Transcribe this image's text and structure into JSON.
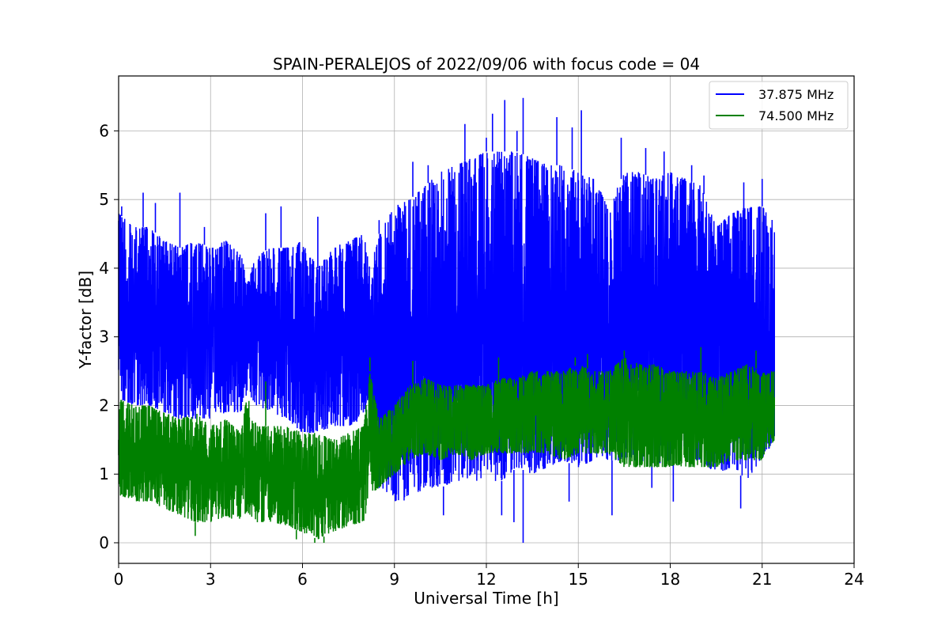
{
  "chart_data": {
    "type": "line",
    "title": "SPAIN-PERALEJOS of 2022/09/06 with focus code = 04",
    "xlabel": "Universal Time [h]",
    "ylabel": "Y-factor [dB]",
    "xlim": [
      0,
      24
    ],
    "ylim": [
      -0.3,
      6.8
    ],
    "xticks": [
      "0",
      "3",
      "6",
      "9",
      "12",
      "15",
      "18",
      "21",
      "24"
    ],
    "yticks": [
      "0",
      "1",
      "2",
      "3",
      "4",
      "5",
      "6"
    ],
    "grid": true,
    "legend_position": "top-right",
    "x_hours": [
      0,
      0.5,
      1,
      1.5,
      2,
      2.5,
      3,
      3.5,
      4,
      4.2,
      4.5,
      5,
      5.5,
      6,
      6.5,
      7,
      7.5,
      8,
      8.2,
      8.5,
      9,
      9.5,
      10,
      10.5,
      11,
      11.5,
      12,
      12.5,
      13,
      13.5,
      14,
      14.5,
      15,
      15.5,
      16,
      16.5,
      17,
      17.5,
      18,
      18.5,
      19,
      19.5,
      20,
      20.5,
      21,
      21.4
    ],
    "series": [
      {
        "name": "37.875 MHz",
        "color": "#0000ff",
        "upper": [
          4.8,
          4.6,
          4.6,
          4.4,
          4.3,
          4.4,
          4.3,
          4.4,
          4.2,
          3.8,
          4.2,
          4.3,
          4.3,
          4.4,
          4.0,
          4.3,
          4.4,
          4.5,
          4.0,
          4.5,
          4.9,
          5.0,
          5.2,
          5.4,
          5.5,
          5.6,
          5.7,
          5.7,
          5.7,
          5.6,
          5.5,
          5.5,
          5.4,
          5.3,
          4.9,
          5.4,
          5.4,
          5.3,
          5.4,
          5.3,
          5.2,
          4.6,
          4.8,
          4.9,
          4.9,
          4.7
        ],
        "lower": [
          2.1,
          2.0,
          2.0,
          1.9,
          1.8,
          1.8,
          1.8,
          1.9,
          1.9,
          2.2,
          2.0,
          1.9,
          1.8,
          1.6,
          1.6,
          1.7,
          1.7,
          1.8,
          2.1,
          0.8,
          0.6,
          0.6,
          0.8,
          0.8,
          0.9,
          0.9,
          0.9,
          0.9,
          1.1,
          1.0,
          1.1,
          1.2,
          1.1,
          1.2,
          1.2,
          1.2,
          1.2,
          1.1,
          1.2,
          1.2,
          1.2,
          1.0,
          1.1,
          0.9,
          1.2,
          1.5
        ],
        "spikes": [
          [
            0.1,
            4.9
          ],
          [
            0.8,
            5.1
          ],
          [
            1.2,
            4.95
          ],
          [
            2.0,
            5.1
          ],
          [
            2.8,
            4.6
          ],
          [
            4.8,
            4.8
          ],
          [
            5.3,
            4.9
          ],
          [
            6.5,
            4.75
          ],
          [
            8.5,
            4.7
          ],
          [
            9.6,
            5.55
          ],
          [
            10.1,
            5.5
          ],
          [
            11.3,
            6.1
          ],
          [
            12.0,
            5.9
          ],
          [
            12.2,
            6.25
          ],
          [
            12.6,
            6.45
          ],
          [
            13.0,
            6.0
          ],
          [
            13.2,
            6.48
          ],
          [
            14.3,
            6.2
          ],
          [
            14.8,
            6.05
          ],
          [
            15.1,
            6.3
          ],
          [
            16.4,
            5.9
          ],
          [
            17.2,
            5.75
          ],
          [
            17.8,
            5.7
          ],
          [
            18.7,
            5.5
          ],
          [
            19.1,
            5.35
          ],
          [
            20.4,
            5.25
          ],
          [
            21.0,
            5.3
          ]
        ],
        "dips": [
          [
            10.6,
            0.4
          ],
          [
            12.5,
            0.4
          ],
          [
            12.9,
            0.3
          ],
          [
            13.2,
            0.0
          ],
          [
            14.7,
            0.6
          ],
          [
            16.1,
            0.4
          ],
          [
            17.4,
            0.8
          ],
          [
            18.1,
            0.6
          ],
          [
            20.3,
            0.5
          ]
        ]
      },
      {
        "name": "74.500 MHz",
        "color": "#008000",
        "upper": [
          2.1,
          2.0,
          2.0,
          1.9,
          1.8,
          1.9,
          1.7,
          1.8,
          1.6,
          2.2,
          1.7,
          1.7,
          1.7,
          1.6,
          1.6,
          1.5,
          1.6,
          1.7,
          2.5,
          1.8,
          2.0,
          2.3,
          2.4,
          2.3,
          2.3,
          2.3,
          2.3,
          2.4,
          2.4,
          2.5,
          2.5,
          2.5,
          2.6,
          2.5,
          2.5,
          2.7,
          2.6,
          2.6,
          2.5,
          2.5,
          2.5,
          2.4,
          2.5,
          2.6,
          2.5,
          2.5
        ],
        "lower": [
          0.7,
          0.6,
          0.6,
          0.5,
          0.4,
          0.3,
          0.3,
          0.35,
          0.35,
          0.45,
          0.3,
          0.3,
          0.25,
          0.15,
          0.05,
          0.15,
          0.25,
          0.3,
          0.7,
          0.8,
          1.0,
          1.2,
          1.3,
          1.2,
          1.3,
          1.2,
          1.3,
          1.3,
          1.3,
          1.3,
          1.3,
          1.2,
          1.3,
          1.3,
          1.3,
          1.1,
          1.1,
          1.1,
          1.1,
          1.1,
          1.1,
          1.1,
          1.2,
          1.2,
          1.2,
          1.5
        ],
        "spikes": [
          [
            4.8,
            2.35
          ],
          [
            8.2,
            2.7
          ],
          [
            9.6,
            2.65
          ],
          [
            12.4,
            2.7
          ],
          [
            14.9,
            2.7
          ],
          [
            15.3,
            2.75
          ],
          [
            16.5,
            2.8
          ],
          [
            19.0,
            2.85
          ],
          [
            20.8,
            2.8
          ]
        ],
        "dips": [
          [
            2.5,
            0.1
          ],
          [
            5.8,
            0.05
          ],
          [
            6.4,
            0.0
          ],
          [
            6.7,
            0.0
          ]
        ]
      }
    ]
  }
}
